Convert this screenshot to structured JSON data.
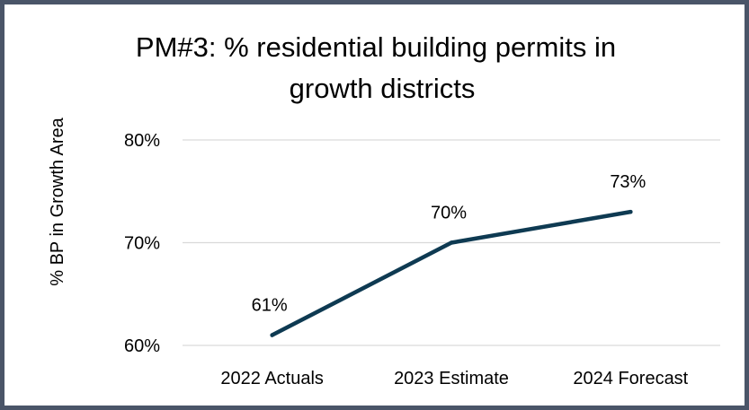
{
  "chart_data": {
    "type": "line",
    "title_lines": [
      "PM#3: % residential building permits in",
      "growth districts"
    ],
    "ylabel": "% BP in Growth Area",
    "xlabel": "",
    "categories": [
      "2022 Actuals",
      "2023 Estimate",
      "2024 Forecast"
    ],
    "series": [
      {
        "values": [
          61,
          70,
          73
        ],
        "labels": [
          "61%",
          "70%",
          "73%"
        ]
      }
    ],
    "ylim": [
      60,
      80
    ],
    "yticks": [
      60,
      70,
      80
    ],
    "ytick_labels": [
      "60%",
      "70%",
      "80%"
    ],
    "grid": true,
    "line_color": "#0e3a52"
  }
}
